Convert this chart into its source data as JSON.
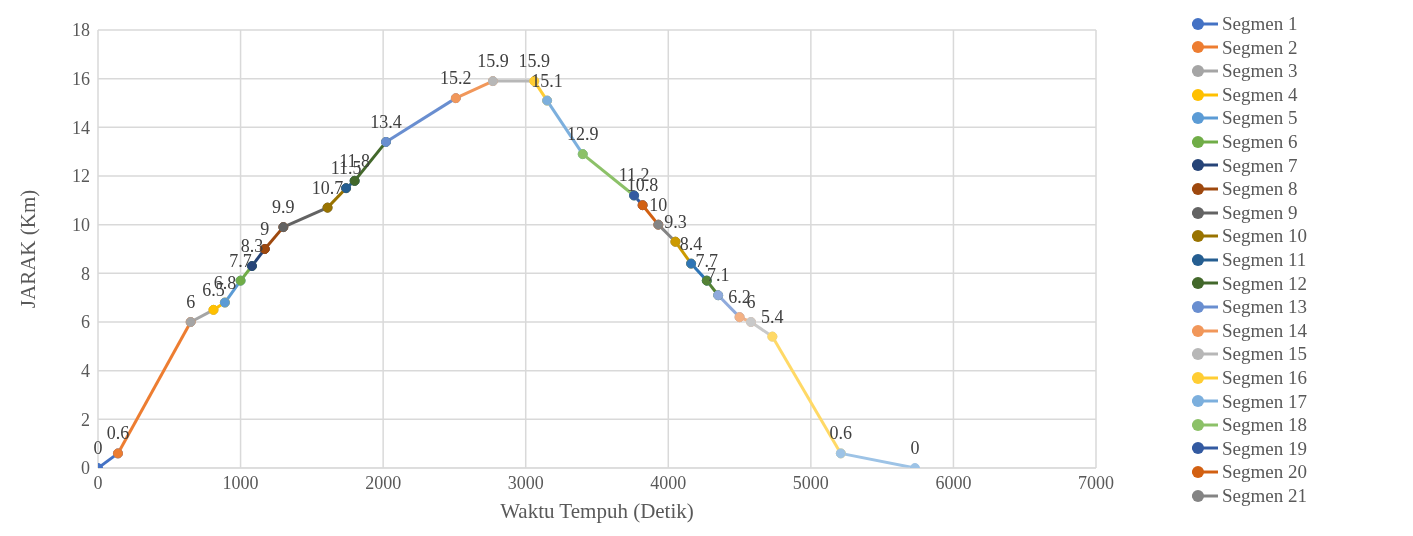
{
  "chart_data": {
    "type": "line",
    "xlabel": "Waktu Tempuh (Detik)",
    "ylabel": "JARAK (Km)",
    "xlim": [
      0,
      7000
    ],
    "xticks": [
      0,
      1000,
      2000,
      3000,
      4000,
      5000,
      6000,
      7000
    ],
    "ylim": [
      0,
      18
    ],
    "yticks": [
      0,
      2,
      4,
      6,
      8,
      10,
      12,
      14,
      16,
      18
    ],
    "grid": true,
    "legend": "right",
    "marker": "circle",
    "series": [
      {
        "name": "Segmen 1",
        "color": "#4472c4",
        "x": [
          0,
          140
        ],
        "values": [
          0,
          0.6
        ],
        "value_labels": [
          "0",
          "0.6"
        ]
      },
      {
        "name": "Segmen 2",
        "color": "#ed7d31",
        "x": [
          140,
          650
        ],
        "values": [
          0.6,
          6
        ],
        "value_labels": [
          null,
          "6"
        ]
      },
      {
        "name": "Segmen 3",
        "color": "#a5a5a5",
        "x": [
          650,
          810
        ],
        "values": [
          6,
          6.5
        ],
        "value_labels": [
          null,
          "6.5"
        ]
      },
      {
        "name": "Segmen 4",
        "color": "#ffc000",
        "x": [
          810,
          890
        ],
        "values": [
          6.5,
          6.8
        ],
        "value_labels": [
          null,
          "6.8"
        ]
      },
      {
        "name": "Segmen 5",
        "color": "#5b9bd5",
        "x": [
          890,
          1000
        ],
        "values": [
          6.8,
          7.7
        ],
        "value_labels": [
          null,
          "7.7"
        ]
      },
      {
        "name": "Segmen 6",
        "color": "#70ad47",
        "x": [
          1000,
          1080
        ],
        "values": [
          7.7,
          8.3
        ],
        "value_labels": [
          null,
          "8.3"
        ]
      },
      {
        "name": "Segmen 7",
        "color": "#264478",
        "x": [
          1080,
          1170
        ],
        "values": [
          8.3,
          9
        ],
        "value_labels": [
          null,
          "9"
        ]
      },
      {
        "name": "Segmen 8",
        "color": "#9e480e",
        "x": [
          1170,
          1300
        ],
        "values": [
          9,
          9.9
        ],
        "value_labels": [
          null,
          "9.9"
        ]
      },
      {
        "name": "Segmen 9",
        "color": "#636363",
        "x": [
          1300,
          1610
        ],
        "values": [
          9.9,
          10.7
        ],
        "value_labels": [
          null,
          "10.7"
        ]
      },
      {
        "name": "Segmen 10",
        "color": "#997300",
        "x": [
          1610,
          1740
        ],
        "values": [
          10.7,
          11.5
        ],
        "value_labels": [
          null,
          "11.5"
        ]
      },
      {
        "name": "Segmen 11",
        "color": "#255e91",
        "x": [
          1740,
          1800
        ],
        "values": [
          11.5,
          11.8
        ],
        "value_labels": [
          null,
          "11.8"
        ]
      },
      {
        "name": "Segmen 12",
        "color": "#43682b",
        "x": [
          1800,
          2020
        ],
        "values": [
          11.8,
          13.4
        ],
        "value_labels": [
          null,
          "13.4"
        ]
      },
      {
        "name": "Segmen 13",
        "color": "#698ed0",
        "x": [
          2020,
          2510
        ],
        "values": [
          13.4,
          15.2
        ],
        "value_labels": [
          null,
          "15.2"
        ]
      },
      {
        "name": "Segmen 14",
        "color": "#f1975a",
        "x": [
          2510,
          2770
        ],
        "values": [
          15.2,
          15.9
        ],
        "value_labels": [
          null,
          "15.9"
        ]
      },
      {
        "name": "Segmen 15",
        "color": "#b7b7b7",
        "x": [
          2770,
          3060
        ],
        "values": [
          15.9,
          15.9
        ],
        "value_labels": [
          null,
          "15.9"
        ]
      },
      {
        "name": "Segmen 16",
        "color": "#ffcd33",
        "x": [
          3060,
          3150
        ],
        "values": [
          15.9,
          15.1
        ],
        "value_labels": [
          null,
          "15.1"
        ]
      },
      {
        "name": "Segmen 17",
        "color": "#7cafdd",
        "x": [
          3150,
          3400
        ],
        "values": [
          15.1,
          12.9
        ],
        "value_labels": [
          null,
          "12.9"
        ]
      },
      {
        "name": "Segmen 18",
        "color": "#8cc168",
        "x": [
          3400,
          3760
        ],
        "values": [
          12.9,
          11.2
        ],
        "value_labels": [
          null,
          "11.2"
        ]
      },
      {
        "name": "Segmen 19",
        "color": "#335aa1",
        "x": [
          3760,
          3820
        ],
        "values": [
          11.2,
          10.8
        ],
        "value_labels": [
          null,
          "10.8"
        ]
      },
      {
        "name": "Segmen 20",
        "color": "#d26012",
        "x": [
          3820,
          3930
        ],
        "values": [
          10.8,
          10
        ],
        "value_labels": [
          null,
          "10"
        ]
      },
      {
        "name": "Segmen 21",
        "color": "#848484",
        "x": [
          3930,
          4050
        ],
        "values": [
          10,
          9.3
        ],
        "value_labels": [
          null,
          "9.3"
        ]
      },
      {
        "color": "#cc9a00",
        "x": [
          4050,
          4160
        ],
        "values": [
          9.3,
          8.4
        ],
        "value_labels": [
          null,
          "8.4"
        ]
      },
      {
        "color": "#2e75b6",
        "x": [
          4160,
          4270
        ],
        "values": [
          8.4,
          7.7
        ],
        "value_labels": [
          null,
          "7.7"
        ]
      },
      {
        "color": "#548235",
        "x": [
          4270,
          4350
        ],
        "values": [
          7.7,
          7.1
        ],
        "value_labels": [
          null,
          "7.1"
        ]
      },
      {
        "color": "#8faadc",
        "x": [
          4350,
          4500
        ],
        "values": [
          7.1,
          6.2
        ],
        "value_labels": [
          null,
          "6.2"
        ]
      },
      {
        "color": "#f4b183",
        "x": [
          4500,
          4580
        ],
        "values": [
          6.2,
          6
        ],
        "value_labels": [
          null,
          "6"
        ]
      },
      {
        "color": "#c9c9c9",
        "x": [
          4580,
          4730
        ],
        "values": [
          6,
          5.4
        ],
        "value_labels": [
          null,
          "5.4"
        ]
      },
      {
        "color": "#ffd966",
        "x": [
          4730,
          5210
        ],
        "values": [
          5.4,
          0.6
        ],
        "value_labels": [
          null,
          "0.6"
        ]
      },
      {
        "color": "#9dc3e6",
        "x": [
          5210,
          5730
        ],
        "values": [
          0.6,
          0
        ],
        "value_labels": [
          null,
          "0"
        ]
      }
    ]
  }
}
